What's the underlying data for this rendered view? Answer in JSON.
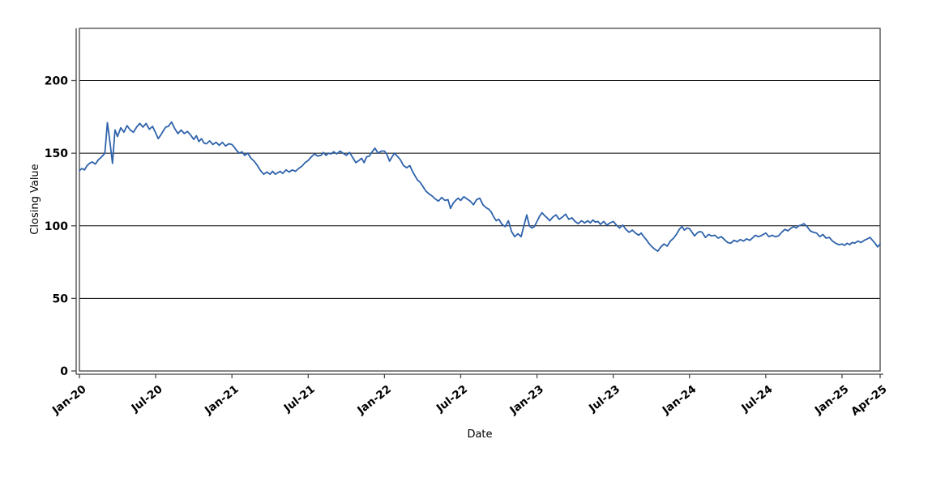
{
  "chart_data": {
    "type": "line",
    "title": "",
    "xlabel": "Date",
    "ylabel": "Closing Value",
    "ylim": [
      0,
      236
    ],
    "y_ticks": [
      0,
      50,
      100,
      150,
      200
    ],
    "grid": "horizontal-black-lines",
    "legend": "none",
    "x_ticks": [
      {
        "label": "Jan-20",
        "month": 0
      },
      {
        "label": "Jul-20",
        "month": 6
      },
      {
        "label": "Jan-21",
        "month": 12
      },
      {
        "label": "Jul-21",
        "month": 18
      },
      {
        "label": "Jan-22",
        "month": 24
      },
      {
        "label": "Jul-22",
        "month": 30
      },
      {
        "label": "Jan-23",
        "month": 36
      },
      {
        "label": "Jul-23",
        "month": 42
      },
      {
        "label": "Jan-24",
        "month": 48
      },
      {
        "label": "Jul-24",
        "month": 54
      },
      {
        "label": "Jan-25",
        "month": 60
      },
      {
        "label": "Apr-25",
        "month": 63
      }
    ],
    "series": [
      {
        "name": "Closing Value",
        "color": "#2e62ab",
        "start_month": "Jan-20",
        "resolution": "approx-weekly estimates grouped by month",
        "monthly_values": [
          [
            138,
            139.5,
            138.5,
            141.5,
            143
          ],
          [
            144,
            142.5,
            145.5,
            147.5
          ],
          [
            150,
            171,
            158,
            143,
            166
          ],
          [
            161.5,
            167.5,
            164.5,
            169
          ],
          [
            166,
            164.5,
            168,
            170.5
          ],
          [
            168,
            170.5,
            166.5,
            168.5
          ],
          [
            164,
            160,
            162.5,
            165.5,
            168
          ],
          [
            168.5,
            171.5,
            167,
            163.5
          ],
          [
            166,
            163.5,
            165,
            162.5
          ],
          [
            159.5,
            162,
            158,
            160,
            157
          ],
          [
            156.5,
            158.5,
            156,
            157.5
          ],
          [
            155.5,
            157.5,
            155,
            156.5
          ],
          [
            156,
            154,
            151.5,
            150,
            151
          ],
          [
            148.5,
            150,
            146.5,
            144.5
          ],
          [
            141.5,
            138,
            135.5,
            137
          ],
          [
            135.5,
            137.5,
            135.5,
            136.5,
            137.5
          ],
          [
            136,
            138.5,
            137,
            138.5
          ],
          [
            137.5,
            139.5,
            141,
            143.5
          ],
          [
            145,
            147.5,
            149.5,
            148
          ],
          [
            148.5,
            150.5,
            148.5,
            150,
            149.5
          ],
          [
            151,
            149.5,
            151.5,
            150
          ],
          [
            148.5,
            150.5,
            147,
            143.5
          ],
          [
            145,
            146.5,
            143.5,
            147.5,
            148
          ],
          [
            150.5,
            153.5,
            150,
            151.5
          ],
          [
            151.5,
            149,
            144.5,
            147.5,
            150
          ],
          [
            148,
            145.5,
            141.5,
            140
          ],
          [
            141.5,
            137.5,
            134.5,
            131.5,
            130
          ],
          [
            127.5,
            124,
            122,
            120.5
          ],
          [
            118.5,
            117,
            119.5,
            117.5
          ],
          [
            118,
            112,
            115.5,
            117.5,
            119
          ],
          [
            117.5,
            120,
            118.5,
            117
          ],
          [
            114.5,
            118,
            119,
            114.5
          ],
          [
            112.5,
            111.5,
            109.5,
            106,
            103.5
          ],
          [
            104.5,
            101,
            99.5,
            103.5
          ],
          [
            96,
            92.5,
            94.5,
            92.5
          ],
          [
            101,
            107.5,
            100,
            98.5,
            99.5
          ],
          [
            103,
            106.5,
            109,
            107,
            105.5
          ],
          [
            103.5,
            106,
            107.5,
            104.5
          ],
          [
            106,
            108,
            104.5,
            105.5
          ],
          [
            103,
            101.5,
            103.5,
            102
          ],
          [
            103.5,
            102,
            104,
            102.5,
            103
          ],
          [
            101,
            103,
            100.5,
            102
          ],
          [
            103,
            100.5,
            98.5,
            100.5
          ],
          [
            97.5,
            95.5,
            97,
            95
          ],
          [
            93.5,
            95,
            92.5,
            90.5,
            88
          ],
          [
            86,
            84,
            82.5,
            85.5
          ],
          [
            87.5,
            86,
            89.5,
            91.5
          ],
          [
            94.5,
            97.5,
            99.5,
            97,
            98.5
          ],
          [
            98,
            95.5,
            93,
            95,
            96
          ],
          [
            95.5,
            92,
            94,
            93
          ],
          [
            93.5,
            91.5,
            92.5,
            90.5
          ],
          [
            88.5,
            88,
            90,
            89
          ],
          [
            90.5,
            89.5,
            91,
            90
          ],
          [
            92,
            93.5,
            92.5,
            93,
            94
          ],
          [
            95,
            92.5,
            93.5,
            92.5
          ],
          [
            93,
            95.5,
            97.5,
            96.5
          ],
          [
            98.5,
            99.5,
            98.5,
            100,
            100.5
          ],
          [
            101.5,
            99.5,
            96.5,
            95.5
          ],
          [
            95,
            92.5,
            94,
            91.5
          ],
          [
            92,
            89.5,
            88,
            87
          ],
          [
            87.5,
            86.5,
            88,
            87,
            88.5
          ],
          [
            88,
            89.5,
            88.5,
            90
          ],
          [
            91,
            92,
            90,
            88,
            85.5
          ],
          [
            87.5
          ]
        ]
      }
    ]
  }
}
